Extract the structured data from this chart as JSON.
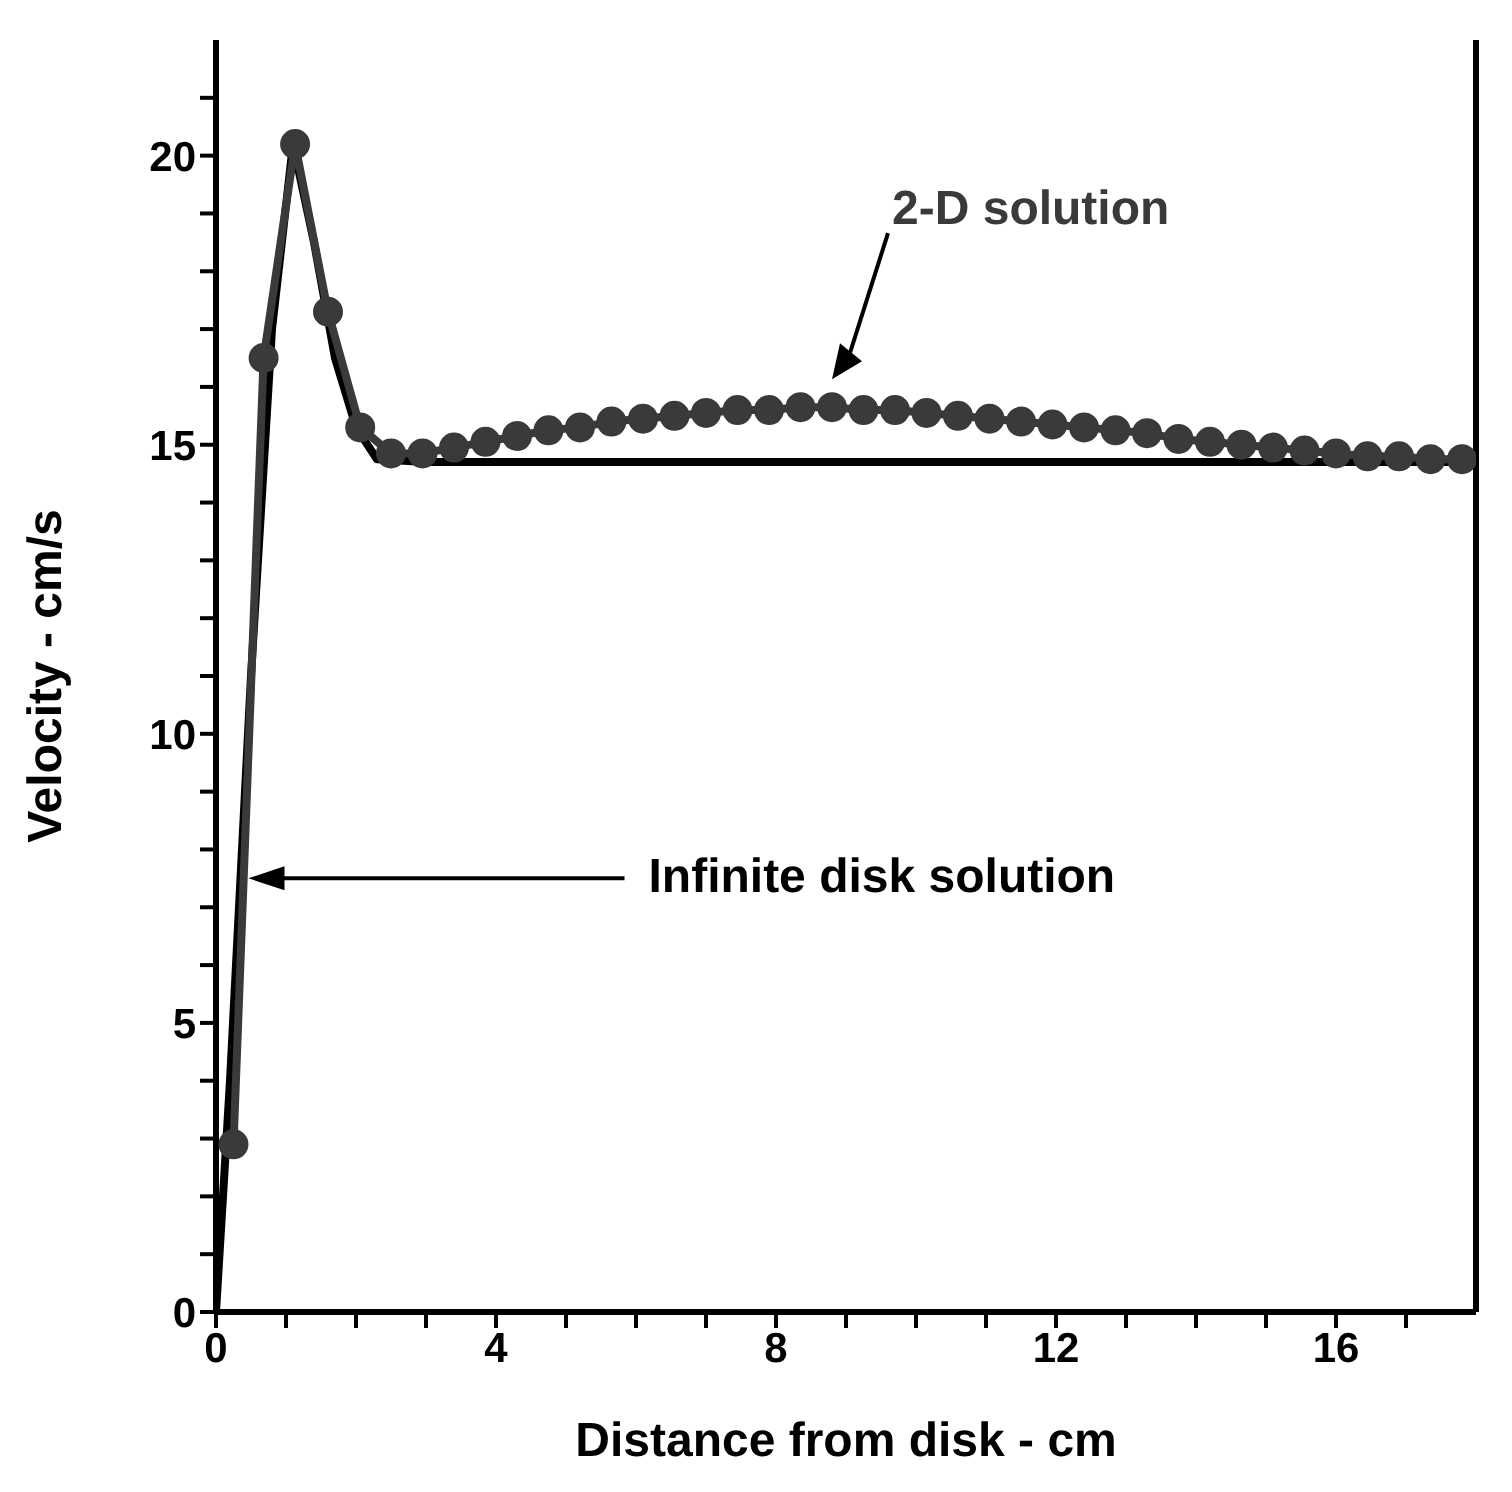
{
  "chart_data": {
    "type": "line",
    "xlabel": "Distance from disk - cm",
    "ylabel": "Velocity - cm/s",
    "xlim": [
      0,
      18
    ],
    "xticks": [
      0,
      {
        "value": 1,
        "label": null
      },
      {
        "value": 2,
        "label": null
      },
      {
        "value": 3,
        "label": null
      },
      4,
      {
        "value": 5,
        "label": null
      },
      {
        "value": 6,
        "label": null
      },
      {
        "value": 7,
        "label": null
      },
      8,
      {
        "value": 9,
        "label": null
      },
      {
        "value": 10,
        "label": null
      },
      {
        "value": 11,
        "label": null
      },
      12,
      {
        "value": 13,
        "label": null
      },
      {
        "value": 14,
        "label": null
      },
      {
        "value": 15,
        "label": null
      },
      16,
      {
        "value": 17,
        "label": null
      }
    ],
    "ylim": [
      0,
      22
    ],
    "yticks": [
      0,
      {
        "value": 1,
        "label": null
      },
      {
        "value": 2,
        "label": null
      },
      {
        "value": 3,
        "label": null
      },
      {
        "value": 4,
        "label": null
      },
      5,
      {
        "value": 6,
        "label": null
      },
      {
        "value": 7,
        "label": null
      },
      {
        "value": 8,
        "label": null
      },
      {
        "value": 9,
        "label": null
      },
      10,
      {
        "value": 11,
        "label": null
      },
      {
        "value": 12,
        "label": null
      },
      {
        "value": 13,
        "label": null
      },
      {
        "value": 14,
        "label": null
      },
      15,
      {
        "value": 16,
        "label": null
      },
      {
        "value": 17,
        "label": null
      },
      {
        "value": 18,
        "label": null
      },
      {
        "value": 19,
        "label": null
      },
      20,
      {
        "value": 21,
        "label": null
      }
    ],
    "grid": false,
    "legend": false,
    "line_style": "solid",
    "series": [
      {
        "name": "2-D solution",
        "color": "#3a3a3a",
        "marker": "circle",
        "x": [
          0.25,
          0.68,
          1.13,
          1.6,
          2.06,
          2.5,
          2.95,
          3.4,
          3.85,
          4.3,
          4.75,
          5.2,
          5.65,
          6.1,
          6.55,
          7.0,
          7.45,
          7.9,
          8.35,
          8.8,
          9.25,
          9.7,
          10.15,
          10.6,
          11.05,
          11.5,
          11.95,
          12.4,
          12.85,
          13.3,
          13.75,
          14.2,
          14.65,
          15.1,
          15.55,
          16.0,
          16.45,
          16.9,
          17.35,
          17.8
        ],
        "values": [
          2.9,
          16.5,
          20.2,
          17.3,
          15.3,
          14.85,
          14.85,
          14.95,
          15.05,
          15.15,
          15.25,
          15.3,
          15.4,
          15.45,
          15.5,
          15.55,
          15.6,
          15.6,
          15.65,
          15.65,
          15.6,
          15.6,
          15.55,
          15.5,
          15.45,
          15.4,
          15.35,
          15.3,
          15.25,
          15.2,
          15.1,
          15.05,
          15.0,
          14.95,
          14.9,
          14.85,
          14.8,
          14.8,
          14.75,
          14.75
        ]
      },
      {
        "name": "Infinite disk solution",
        "color": "#000000",
        "marker": "none",
        "x": [
          0,
          0.2,
          0.5,
          0.8,
          1.1,
          1.4,
          1.7,
          2.0,
          2.3,
          3,
          18
        ],
        "values": [
          0,
          4,
          11,
          17,
          20.2,
          18.5,
          16.5,
          15.3,
          14.75,
          14.7,
          14.7
        ]
      }
    ]
  }
}
